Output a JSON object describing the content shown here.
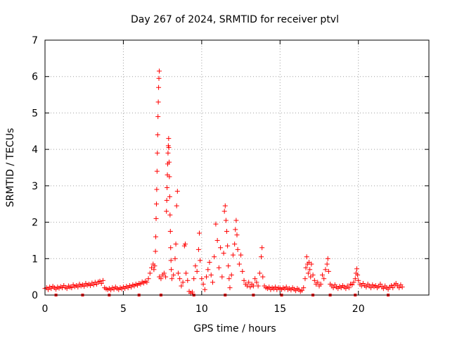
{
  "chart_data": {
    "type": "scatter",
    "title": "Day 267 of 2024, SRMTID for receiver ptvl",
    "xlabel": "GPS time / hours",
    "ylabel": "SRMTID / TECUs",
    "xlim": [
      0,
      24.5
    ],
    "ylim": [
      0,
      7
    ],
    "xticks": [
      0,
      5,
      10,
      15,
      20
    ],
    "yticks": [
      0,
      1,
      2,
      3,
      4,
      5,
      6,
      7
    ],
    "grid": true,
    "series": [
      {
        "name": "SRMTID",
        "color": "#ff0000",
        "marker": "plus",
        "points": [
          [
            0.0,
            0.18
          ],
          [
            0.1,
            0.2
          ],
          [
            0.2,
            0.15
          ],
          [
            0.3,
            0.22
          ],
          [
            0.4,
            0.18
          ],
          [
            0.5,
            0.24
          ],
          [
            0.6,
            0.2
          ],
          [
            0.7,
            0.16
          ],
          [
            0.8,
            0.22
          ],
          [
            0.9,
            0.19
          ],
          [
            1.0,
            0.23
          ],
          [
            1.1,
            0.2
          ],
          [
            1.2,
            0.26
          ],
          [
            1.3,
            0.21
          ],
          [
            1.4,
            0.18
          ],
          [
            1.5,
            0.25
          ],
          [
            1.6,
            0.22
          ],
          [
            1.7,
            0.2
          ],
          [
            1.8,
            0.28
          ],
          [
            1.9,
            0.23
          ],
          [
            2.0,
            0.26
          ],
          [
            2.1,
            0.22
          ],
          [
            2.2,
            0.3
          ],
          [
            2.3,
            0.25
          ],
          [
            2.4,
            0.28
          ],
          [
            2.5,
            0.24
          ],
          [
            2.6,
            0.32
          ],
          [
            2.7,
            0.27
          ],
          [
            2.8,
            0.3
          ],
          [
            2.9,
            0.26
          ],
          [
            3.0,
            0.33
          ],
          [
            3.1,
            0.28
          ],
          [
            3.2,
            0.35
          ],
          [
            3.3,
            0.3
          ],
          [
            3.4,
            0.36
          ],
          [
            3.5,
            0.38
          ],
          [
            3.6,
            0.32
          ],
          [
            3.7,
            0.4
          ],
          [
            3.8,
            0.2
          ],
          [
            3.9,
            0.17
          ],
          [
            4.0,
            0.15
          ],
          [
            4.1,
            0.18
          ],
          [
            4.2,
            0.14
          ],
          [
            4.3,
            0.2
          ],
          [
            4.4,
            0.16
          ],
          [
            4.5,
            0.22
          ],
          [
            4.6,
            0.18
          ],
          [
            4.7,
            0.15
          ],
          [
            4.8,
            0.2
          ],
          [
            4.9,
            0.17
          ],
          [
            5.0,
            0.22
          ],
          [
            5.1,
            0.18
          ],
          [
            5.2,
            0.24
          ],
          [
            5.3,
            0.2
          ],
          [
            5.4,
            0.26
          ],
          [
            5.5,
            0.22
          ],
          [
            5.6,
            0.28
          ],
          [
            5.7,
            0.25
          ],
          [
            5.8,
            0.3
          ],
          [
            5.9,
            0.27
          ],
          [
            6.0,
            0.32
          ],
          [
            6.1,
            0.3
          ],
          [
            6.2,
            0.36
          ],
          [
            6.3,
            0.33
          ],
          [
            6.4,
            0.38
          ],
          [
            6.5,
            0.35
          ],
          [
            6.6,
            0.45
          ],
          [
            6.7,
            0.6
          ],
          [
            6.8,
            0.75
          ],
          [
            6.9,
            0.85
          ],
          [
            6.95,
            0.7
          ],
          [
            7.0,
            0.8
          ],
          [
            7.05,
            1.2
          ],
          [
            7.07,
            1.6
          ],
          [
            7.09,
            2.1
          ],
          [
            7.11,
            2.5
          ],
          [
            7.13,
            2.9
          ],
          [
            7.15,
            3.4
          ],
          [
            7.17,
            3.9
          ],
          [
            7.19,
            4.4
          ],
          [
            7.21,
            4.9
          ],
          [
            7.23,
            5.3
          ],
          [
            7.25,
            5.7
          ],
          [
            7.27,
            5.95
          ],
          [
            7.29,
            6.15
          ],
          [
            7.3,
            0.5
          ],
          [
            7.4,
            0.45
          ],
          [
            7.5,
            0.55
          ],
          [
            7.6,
            0.6
          ],
          [
            7.7,
            0.5
          ],
          [
            7.75,
            2.3
          ],
          [
            7.77,
            2.6
          ],
          [
            7.79,
            2.95
          ],
          [
            7.81,
            3.3
          ],
          [
            7.83,
            3.6
          ],
          [
            7.85,
            3.9
          ],
          [
            7.87,
            4.1
          ],
          [
            7.89,
            4.3
          ],
          [
            7.9,
            4.05
          ],
          [
            7.92,
            3.65
          ],
          [
            7.94,
            3.25
          ],
          [
            7.96,
            2.7
          ],
          [
            7.98,
            2.2
          ],
          [
            8.0,
            1.75
          ],
          [
            8.02,
            1.3
          ],
          [
            8.04,
            0.95
          ],
          [
            8.06,
            0.7
          ],
          [
            8.1,
            0.45
          ],
          [
            8.2,
            0.55
          ],
          [
            8.3,
            1.0
          ],
          [
            8.35,
            1.4
          ],
          [
            8.4,
            2.45
          ],
          [
            8.45,
            2.85
          ],
          [
            8.5,
            0.6
          ],
          [
            8.6,
            0.45
          ],
          [
            8.7,
            0.25
          ],
          [
            8.8,
            0.35
          ],
          [
            8.9,
            1.35
          ],
          [
            8.95,
            1.4
          ],
          [
            9.0,
            0.6
          ],
          [
            9.1,
            0.4
          ],
          [
            9.2,
            0.1
          ],
          [
            9.3,
            0.05
          ],
          [
            9.4,
            0.08
          ],
          [
            9.5,
            0.45
          ],
          [
            9.6,
            0.8
          ],
          [
            9.7,
            0.65
          ],
          [
            9.8,
            1.25
          ],
          [
            9.85,
            1.7
          ],
          [
            9.9,
            0.95
          ],
          [
            10.0,
            0.45
          ],
          [
            10.1,
            0.3
          ],
          [
            10.2,
            0.15
          ],
          [
            10.3,
            0.5
          ],
          [
            10.4,
            0.7
          ],
          [
            10.5,
            0.9
          ],
          [
            10.6,
            0.55
          ],
          [
            10.7,
            0.35
          ],
          [
            10.8,
            1.05
          ],
          [
            10.9,
            1.95
          ],
          [
            11.0,
            1.5
          ],
          [
            11.1,
            0.75
          ],
          [
            11.2,
            1.3
          ],
          [
            11.3,
            0.5
          ],
          [
            11.4,
            1.15
          ],
          [
            11.45,
            2.3
          ],
          [
            11.5,
            2.45
          ],
          [
            11.55,
            2.05
          ],
          [
            11.6,
            1.75
          ],
          [
            11.65,
            1.35
          ],
          [
            11.7,
            0.8
          ],
          [
            11.75,
            0.45
          ],
          [
            11.8,
            0.2
          ],
          [
            11.9,
            0.55
          ],
          [
            12.0,
            1.1
          ],
          [
            12.1,
            1.4
          ],
          [
            12.15,
            1.8
          ],
          [
            12.2,
            2.05
          ],
          [
            12.25,
            1.65
          ],
          [
            12.3,
            1.25
          ],
          [
            12.4,
            0.85
          ],
          [
            12.5,
            1.1
          ],
          [
            12.6,
            0.65
          ],
          [
            12.7,
            0.4
          ],
          [
            12.8,
            0.3
          ],
          [
            12.9,
            0.25
          ],
          [
            13.0,
            0.35
          ],
          [
            13.1,
            0.22
          ],
          [
            13.2,
            0.3
          ],
          [
            13.3,
            0.25
          ],
          [
            13.4,
            0.45
          ],
          [
            13.5,
            0.35
          ],
          [
            13.6,
            0.25
          ],
          [
            13.7,
            0.6
          ],
          [
            13.8,
            1.05
          ],
          [
            13.85,
            1.3
          ],
          [
            13.9,
            0.5
          ],
          [
            14.0,
            0.25
          ],
          [
            14.1,
            0.2
          ],
          [
            14.2,
            0.18
          ],
          [
            14.3,
            0.22
          ],
          [
            14.4,
            0.15
          ],
          [
            14.5,
            0.2
          ],
          [
            14.6,
            0.17
          ],
          [
            14.7,
            0.22
          ],
          [
            14.8,
            0.15
          ],
          [
            14.9,
            0.2
          ],
          [
            15.0,
            0.18
          ],
          [
            15.1,
            0.15
          ],
          [
            15.2,
            0.2
          ],
          [
            15.3,
            0.17
          ],
          [
            15.4,
            0.22
          ],
          [
            15.5,
            0.15
          ],
          [
            15.6,
            0.18
          ],
          [
            15.7,
            0.14
          ],
          [
            15.8,
            0.2
          ],
          [
            15.9,
            0.16
          ],
          [
            16.0,
            0.12
          ],
          [
            16.1,
            0.18
          ],
          [
            16.2,
            0.15
          ],
          [
            16.3,
            0.1
          ],
          [
            16.4,
            0.13
          ],
          [
            16.5,
            0.2
          ],
          [
            16.6,
            0.45
          ],
          [
            16.65,
            0.75
          ],
          [
            16.7,
            1.05
          ],
          [
            16.75,
            0.85
          ],
          [
            16.8,
            0.6
          ],
          [
            16.85,
            0.9
          ],
          [
            16.9,
            0.7
          ],
          [
            16.95,
            0.5
          ],
          [
            17.0,
            0.85
          ],
          [
            17.1,
            0.55
          ],
          [
            17.2,
            0.4
          ],
          [
            17.3,
            0.3
          ],
          [
            17.4,
            0.35
          ],
          [
            17.5,
            0.25
          ],
          [
            17.6,
            0.3
          ],
          [
            17.7,
            0.55
          ],
          [
            17.8,
            0.45
          ],
          [
            17.9,
            0.7
          ],
          [
            18.0,
            0.85
          ],
          [
            18.05,
            1.0
          ],
          [
            18.1,
            0.65
          ],
          [
            18.2,
            0.3
          ],
          [
            18.3,
            0.25
          ],
          [
            18.4,
            0.2
          ],
          [
            18.5,
            0.28
          ],
          [
            18.6,
            0.22
          ],
          [
            18.7,
            0.18
          ],
          [
            18.8,
            0.24
          ],
          [
            18.9,
            0.2
          ],
          [
            19.0,
            0.26
          ],
          [
            19.1,
            0.22
          ],
          [
            19.2,
            0.18
          ],
          [
            19.3,
            0.25
          ],
          [
            19.4,
            0.2
          ],
          [
            19.5,
            0.3
          ],
          [
            19.6,
            0.28
          ],
          [
            19.7,
            0.35
          ],
          [
            19.8,
            0.45
          ],
          [
            19.85,
            0.6
          ],
          [
            19.9,
            0.72
          ],
          [
            19.95,
            0.55
          ],
          [
            20.0,
            0.4
          ],
          [
            20.1,
            0.3
          ],
          [
            20.2,
            0.25
          ],
          [
            20.3,
            0.32
          ],
          [
            20.4,
            0.26
          ],
          [
            20.5,
            0.22
          ],
          [
            20.6,
            0.3
          ],
          [
            20.7,
            0.25
          ],
          [
            20.8,
            0.2
          ],
          [
            20.9,
            0.28
          ],
          [
            21.0,
            0.23
          ],
          [
            21.1,
            0.26
          ],
          [
            21.2,
            0.2
          ],
          [
            21.3,
            0.24
          ],
          [
            21.4,
            0.3
          ],
          [
            21.5,
            0.22
          ],
          [
            21.6,
            0.18
          ],
          [
            21.7,
            0.25
          ],
          [
            21.8,
            0.2
          ],
          [
            21.9,
            0.16
          ],
          [
            22.0,
            0.22
          ],
          [
            22.1,
            0.26
          ],
          [
            22.2,
            0.2
          ],
          [
            22.3,
            0.28
          ],
          [
            22.4,
            0.32
          ],
          [
            22.5,
            0.25
          ],
          [
            22.6,
            0.2
          ],
          [
            22.7,
            0.28
          ],
          [
            22.8,
            0.22
          ]
        ]
      }
    ],
    "axis_markers": {
      "color": "#ff0000",
      "x": [
        0.7,
        2.4,
        4.1,
        6.0,
        7.4,
        9.5,
        11.5,
        13.3,
        15.1,
        17.1,
        18.2,
        19.8,
        21.9
      ]
    }
  }
}
